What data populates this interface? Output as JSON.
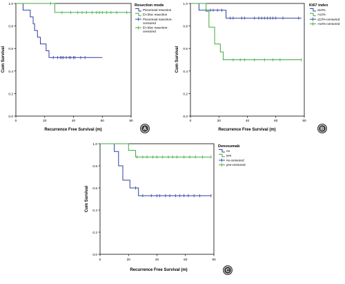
{
  "chart_data": [
    {
      "type": "line",
      "step": true,
      "panel_label": "A",
      "xlabel": "Recurrence Free Survival (m)",
      "ylabel": "Cum Survival",
      "xlim": [
        0,
        80
      ],
      "ylim": [
        0,
        1
      ],
      "xticks": [
        "0",
        "20",
        "40",
        "60",
        "80"
      ],
      "yticks": [
        "0.0",
        "0.2",
        "0.4",
        "0.6",
        "0.8",
        "1.0"
      ],
      "legend_title": "Resection mode",
      "legend": [
        {
          "label": "Piecemeal resection",
          "color": "#2e3f9e",
          "kind": "line"
        },
        {
          "label": "En bloc resection",
          "color": "#3daa3d",
          "kind": "line"
        },
        {
          "label": "Piecemeal resection-censored",
          "color": "#2e3f9e",
          "kind": "censor"
        },
        {
          "label": "En bloc resection-censored",
          "color": "#3daa3d",
          "kind": "censor"
        }
      ],
      "series": [
        {
          "color": "#2e3f9e",
          "steps": [
            [
              0,
              1.0
            ],
            [
              5,
              0.94
            ],
            [
              10,
              0.88
            ],
            [
              12,
              0.82
            ],
            [
              13,
              0.76
            ],
            [
              15,
              0.7
            ],
            [
              17,
              0.64
            ],
            [
              21,
              0.58
            ],
            [
              23,
              0.52
            ],
            [
              60,
              0.52
            ]
          ],
          "censored": [
            26,
            29,
            31,
            32,
            33,
            35,
            37,
            38,
            40,
            41,
            45,
            48
          ]
        },
        {
          "color": "#3daa3d",
          "steps": [
            [
              0,
              1.0
            ],
            [
              26,
              1.0
            ],
            [
              27,
              0.92
            ],
            [
              80,
              0.92
            ]
          ],
          "censored": [
            24,
            32,
            38,
            43,
            46,
            49,
            53,
            56,
            58,
            60,
            63,
            66,
            70,
            77
          ]
        }
      ]
    },
    {
      "type": "line",
      "step": true,
      "panel_label": "B",
      "xlabel": "Recurrence Free Survival (m)",
      "ylabel": "Cum Survival",
      "xlim": [
        0,
        80
      ],
      "ylim": [
        0,
        1
      ],
      "xticks": [
        "0",
        "20",
        "40",
        "60",
        "80"
      ],
      "yticks": [
        "0.0",
        "0.2",
        "0.4",
        "0.6",
        "0.8",
        "1.0"
      ],
      "legend_title": "Ki67 index",
      "legend": [
        {
          "label": "≤10%",
          "color": "#2e3f9e",
          "kind": "line"
        },
        {
          "label": ">10%",
          "color": "#3daa3d",
          "kind": "line"
        },
        {
          "label": "≤10%-censored",
          "color": "#2e3f9e",
          "kind": "censor"
        },
        {
          "label": ">10%-censored",
          "color": "#3daa3d",
          "kind": "censor"
        }
      ],
      "series": [
        {
          "color": "#2e3f9e",
          "steps": [
            [
              0,
              1.0
            ],
            [
              6,
              0.94
            ],
            [
              25,
              0.87
            ],
            [
              78,
              0.87
            ]
          ],
          "censored": [
            11,
            14,
            16,
            19,
            22,
            28,
            30,
            36,
            38,
            45,
            48,
            50,
            52,
            54,
            56,
            58,
            60,
            65,
            76
          ]
        },
        {
          "color": "#3daa3d",
          "steps": [
            [
              0,
              1.0
            ],
            [
              11,
              0.93
            ],
            [
              13,
              0.79
            ],
            [
              17,
              0.64
            ],
            [
              21,
              0.57
            ],
            [
              23,
              0.5
            ],
            [
              78,
              0.5
            ]
          ],
          "censored": [
            30,
            35,
            38,
            45,
            52,
            58,
            63,
            78
          ]
        }
      ]
    },
    {
      "type": "line",
      "step": true,
      "panel_label": "C",
      "xlabel": "Recurrence Free Survival (m)",
      "ylabel": "Cum Survival",
      "xlim": [
        0,
        80
      ],
      "ylim": [
        0,
        1
      ],
      "xticks": [
        "0",
        "20",
        "40",
        "60",
        "80"
      ],
      "yticks": [
        "0.0",
        "0.2",
        "0.4",
        "0.6",
        "0.8",
        "1.0"
      ],
      "legend_title": "Denosumab",
      "legend": [
        {
          "label": "no",
          "color": "#2e3f9e",
          "kind": "line"
        },
        {
          "label": "yes",
          "color": "#3daa3d",
          "kind": "line"
        },
        {
          "label": "no-censored",
          "color": "#2e3f9e",
          "kind": "censor"
        },
        {
          "label": "yes-censored",
          "color": "#3daa3d",
          "kind": "censor"
        }
      ],
      "series": [
        {
          "color": "#2e3f9e",
          "steps": [
            [
              0,
              1.0
            ],
            [
              10,
              0.93
            ],
            [
              13,
              0.8
            ],
            [
              16,
              0.67
            ],
            [
              21,
              0.6
            ],
            [
              27,
              0.53
            ],
            [
              78,
              0.53
            ]
          ],
          "censored": [
            25,
            30,
            36,
            40,
            42,
            46,
            49,
            53,
            56,
            59,
            62,
            66,
            70,
            78
          ]
        },
        {
          "color": "#3daa3d",
          "steps": [
            [
              0,
              1.0
            ],
            [
              20,
              0.94
            ],
            [
              25,
              0.88
            ],
            [
              78,
              0.88
            ]
          ],
          "censored": [
            26,
            30,
            33,
            37,
            40,
            44,
            48,
            51,
            54,
            59,
            63,
            67,
            72,
            78
          ]
        }
      ]
    }
  ]
}
